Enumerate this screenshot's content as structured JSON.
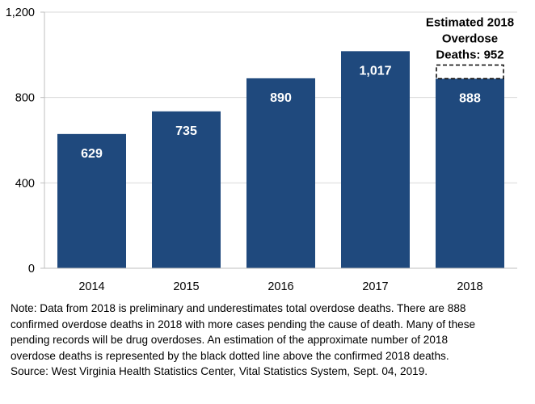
{
  "chart_data": {
    "type": "bar",
    "categories": [
      "2014",
      "2015",
      "2016",
      "2017",
      "2018"
    ],
    "values": [
      629,
      735,
      890,
      1017,
      888
    ],
    "data_labels": [
      "629",
      "735",
      "890",
      "1,017",
      "888"
    ],
    "ylim": [
      0,
      1200
    ],
    "yticks": [
      0,
      400,
      800,
      1200
    ],
    "ytick_labels": [
      "0",
      "400",
      "800",
      "1,200"
    ],
    "grid": true,
    "bar_color": "#1F497D",
    "estimate": {
      "category": "2018",
      "value": 952,
      "style": "dashed black outline",
      "annotation_lines": [
        "Estimated 2018",
        "Overdose",
        "Deaths: 952"
      ]
    }
  },
  "note_lines": [
    "Note: Data from 2018 is preliminary and underestimates total overdose deaths. There are 888",
    "confirmed overdose deaths in 2018 with more cases pending the cause of death. Many of these",
    "pending records will be drug overdoses. An estimation of the approximate number of 2018",
    "overdose deaths is represented by the black dotted line above the confirmed 2018 deaths.",
    "Source: West Virginia Health Statistics Center, Vital Statistics System, Sept. 04, 2019."
  ]
}
